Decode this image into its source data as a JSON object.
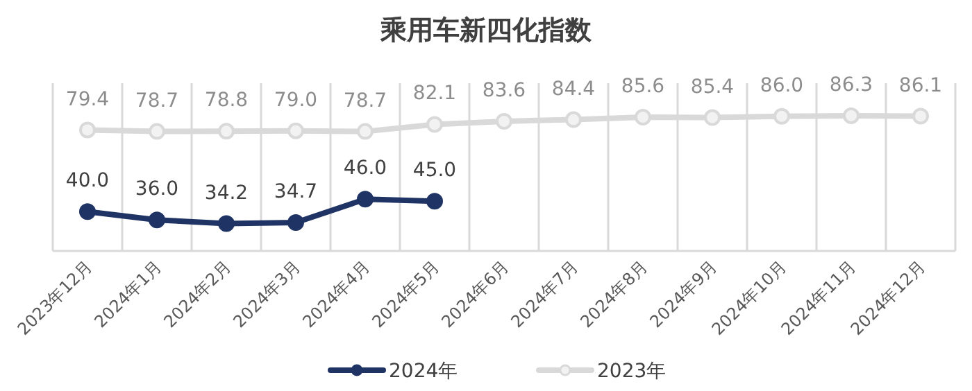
{
  "chart_data": {
    "type": "line",
    "title": "乘用车新四化指数",
    "categories": [
      "2023年12月",
      "2024年1月",
      "2024年2月",
      "2024年3月",
      "2024年4月",
      "2024年5月",
      "2024年6月",
      "2024年7月",
      "2024年8月",
      "2024年9月",
      "2024年10月",
      "2024年11月",
      "2024年12月"
    ],
    "series": [
      {
        "name": "2024年",
        "color": "#1f3464",
        "values": [
          40.0,
          36.0,
          34.2,
          34.7,
          46.0,
          45.0,
          null,
          null,
          null,
          null,
          null,
          null,
          null
        ],
        "value_labels": [
          "40.0",
          "36.0",
          "34.2",
          "34.7",
          "46.0",
          "45.0",
          null,
          null,
          null,
          null,
          null,
          null,
          null
        ]
      },
      {
        "name": "2023年",
        "color": "#d9d9d9",
        "values": [
          79.4,
          78.7,
          78.8,
          79.0,
          78.7,
          82.1,
          83.6,
          84.4,
          85.6,
          85.4,
          86.0,
          86.3,
          86.1
        ],
        "value_labels": [
          "79.4",
          "78.7",
          "78.8",
          "79.0",
          "78.7",
          "82.1",
          "83.6",
          "84.4",
          "85.6",
          "85.4",
          "86.0",
          "86.3",
          "86.1"
        ]
      }
    ],
    "ylim": [
      21,
      102
    ],
    "tick_labels": "x",
    "grid": "x",
    "legend": "bottom",
    "marker": "circle"
  }
}
